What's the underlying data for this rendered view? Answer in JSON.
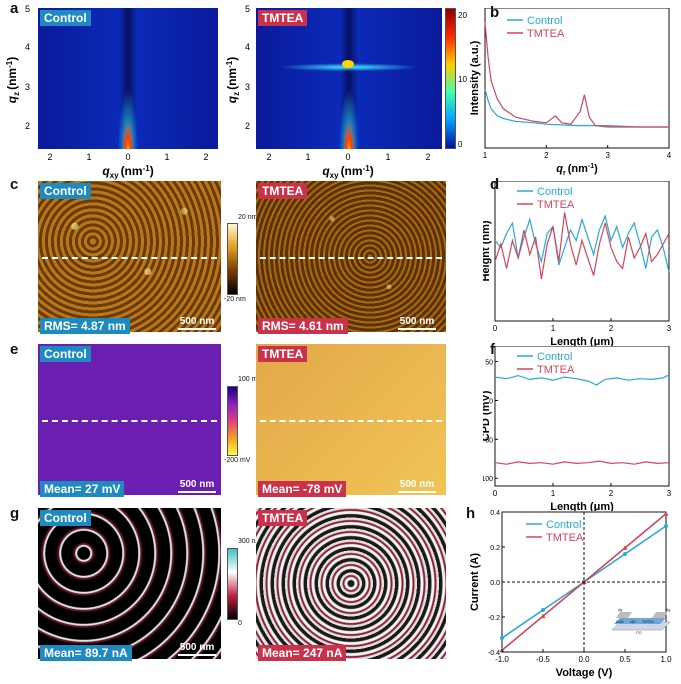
{
  "panels": {
    "a": {
      "letter": "a",
      "control_tag": "Control",
      "tmtea_tag": "TMTEA",
      "yaxis_label": "q",
      "yaxis_sub": "z",
      "yaxis_unit": "(nm",
      "xaxis_label": "q",
      "xaxis_sub": "xy",
      "xaxis_unit": "(nm",
      "yticks": [
        "5",
        "4",
        "3",
        "2"
      ],
      "xticks_left": [
        "2",
        "1",
        "0",
        "1",
        "2"
      ],
      "xticks_right": [
        "2",
        "1",
        "0",
        "1",
        "2"
      ],
      "colorbar_label": "Intensity (a.u.)",
      "colorbar_ticks": [
        "20",
        "10",
        "0"
      ]
    },
    "b": {
      "letter": "b",
      "legend": [
        "Control",
        "TMTEA"
      ],
      "ylabel": "Intensity (a.u.)",
      "xlabel": "q",
      "xlabel_sub": "r",
      "xlabel_unit": "(nm",
      "xticks": [
        "1",
        "2",
        "3",
        "4"
      ]
    },
    "c": {
      "letter": "c",
      "control_tag": "Control",
      "tmtea_tag": "TMTEA",
      "rms_control": "RMS= 4.87 nm",
      "rms_tmtea": "RMS= 4.61 nm",
      "scalebar": "500 nm",
      "cbar_top": "20 nm",
      "cbar_bottom": "-20 nm"
    },
    "d": {
      "letter": "d",
      "legend": [
        "Control",
        "TMTEA"
      ],
      "ylabel": "Height (nm)",
      "xlabel": "Length (μm)",
      "yticks": [
        "20",
        "10",
        "0",
        "-10",
        "-20"
      ],
      "xticks": [
        "0",
        "1",
        "2",
        "3"
      ]
    },
    "e": {
      "letter": "e",
      "control_tag": "Control",
      "tmtea_tag": "TMTEA",
      "mean_control": "Mean= 27 mV",
      "mean_tmtea": "Mean= -78 mV",
      "scalebar": "500 nm",
      "cbar_top": "100 mV",
      "cbar_bottom": "-200 mV"
    },
    "f": {
      "letter": "f",
      "legend": [
        "Control",
        "TMTEA"
      ],
      "ylabel": "CPD (mV)",
      "xlabel": "Length (μm)",
      "yticks": [
        "50",
        "0",
        "-50",
        "-100"
      ],
      "xticks": [
        "0",
        "1",
        "2",
        "3"
      ]
    },
    "g": {
      "letter": "g",
      "control_tag": "Control",
      "tmtea_tag": "TMTEA",
      "mean_control": "Mean= 89.7 nA",
      "mean_tmtea": "Mean= 247 nA",
      "scalebar": "500 nm",
      "cbar_top": "300 nA",
      "cbar_bottom": "0"
    },
    "h": {
      "letter": "h",
      "legend": [
        "Control",
        "TMTEA"
      ],
      "ylabel": "Current (A)",
      "xlabel": "Voltage (V)",
      "yticks": [
        "0.4",
        "0.2",
        "0.0",
        "-0.2",
        "-0.4"
      ],
      "xticks": [
        "-1.0",
        "-0.5",
        "0.0",
        "0.5",
        "1.0"
      ],
      "inset_labels": [
        "Ag",
        "SAM",
        "NiO",
        "TMTEA",
        "ITO",
        "Ag"
      ]
    }
  },
  "colors": {
    "control": "#2aa8d6",
    "tmtea": "#d3455d",
    "tag_control": "#1f8ac0",
    "tag_tmtea": "#c8334b",
    "kpfm_control": "#6a1fb0",
    "kpfm_tmtea": "#e9b84a"
  },
  "chart_data": [
    {
      "panel": "b",
      "type": "line",
      "xlabel": "q_r (nm^-1)",
      "ylabel": "Intensity (a.u.)",
      "xlim": [
        1,
        4
      ],
      "series": [
        {
          "name": "Control",
          "x": [
            1.0,
            1.05,
            1.1,
            1.2,
            1.3,
            1.5,
            1.8,
            2.0,
            2.5,
            3.0,
            3.5,
            4.0
          ],
          "y": [
            0.42,
            0.34,
            0.28,
            0.23,
            0.21,
            0.19,
            0.18,
            0.17,
            0.16,
            0.16,
            0.15,
            0.15
          ]
        },
        {
          "name": "TMTEA",
          "x": [
            1.0,
            1.05,
            1.1,
            1.2,
            1.3,
            1.5,
            1.8,
            2.0,
            2.15,
            2.25,
            2.4,
            2.55,
            2.62,
            2.7,
            2.8,
            3.0,
            3.5,
            4.0
          ],
          "y": [
            0.9,
            0.65,
            0.48,
            0.35,
            0.28,
            0.22,
            0.19,
            0.18,
            0.23,
            0.18,
            0.17,
            0.26,
            0.38,
            0.22,
            0.16,
            0.15,
            0.15,
            0.15
          ]
        }
      ]
    },
    {
      "panel": "d",
      "type": "line",
      "xlabel": "Length (μm)",
      "ylabel": "Height (nm)",
      "xlim": [
        0,
        3
      ],
      "ylim": [
        -20,
        20
      ],
      "series": [
        {
          "name": "Control",
          "x": [
            0.0,
            0.1,
            0.2,
            0.3,
            0.4,
            0.5,
            0.6,
            0.7,
            0.8,
            0.9,
            1.0,
            1.1,
            1.2,
            1.3,
            1.4,
            1.5,
            1.6,
            1.7,
            1.8,
            1.9,
            2.0,
            2.1,
            2.2,
            2.3,
            2.4,
            2.5,
            2.6,
            2.7,
            2.8,
            2.9,
            3.0
          ],
          "y": [
            3,
            1,
            5,
            8,
            -2,
            4,
            9,
            2,
            -3,
            5,
            7,
            -4,
            1,
            6,
            3,
            9,
            4,
            -1,
            6,
            10,
            3,
            7,
            1,
            5,
            8,
            2,
            -5,
            4,
            6,
            1,
            -6
          ]
        },
        {
          "name": "TMTEA",
          "x": [
            0.0,
            0.1,
            0.2,
            0.3,
            0.4,
            0.5,
            0.6,
            0.7,
            0.8,
            0.9,
            1.0,
            1.1,
            1.2,
            1.3,
            1.4,
            1.5,
            1.6,
            1.7,
            1.8,
            1.9,
            2.0,
            2.1,
            2.2,
            2.3,
            2.4,
            2.5,
            2.6,
            2.7,
            2.8,
            2.9,
            3.0
          ],
          "y": [
            -3,
            2,
            -5,
            3,
            -2,
            6,
            -1,
            4,
            -8,
            2,
            7,
            -3,
            11,
            2,
            -4,
            3,
            -2,
            -7,
            2,
            8,
            1,
            -3,
            -5,
            4,
            -2,
            1,
            5,
            -3,
            -1,
            2,
            5
          ]
        }
      ]
    },
    {
      "panel": "f",
      "type": "line",
      "xlabel": "Length (μm)",
      "ylabel": "CPD (mV)",
      "xlim": [
        0,
        3
      ],
      "ylim": [
        -110,
        70
      ],
      "series": [
        {
          "name": "Control",
          "x": [
            0.0,
            0.2,
            0.4,
            0.6,
            0.8,
            1.0,
            1.2,
            1.4,
            1.6,
            1.75,
            1.9,
            2.1,
            2.3,
            2.5,
            2.7,
            2.9,
            3.0
          ],
          "y": [
            30,
            28,
            32,
            27,
            29,
            26,
            30,
            28,
            25,
            20,
            27,
            29,
            26,
            28,
            27,
            29,
            33
          ]
        },
        {
          "name": "TMTEA",
          "x": [
            0.0,
            0.2,
            0.4,
            0.6,
            0.8,
            1.0,
            1.2,
            1.4,
            1.6,
            1.8,
            2.0,
            2.2,
            2.4,
            2.6,
            2.8,
            3.0
          ],
          "y": [
            -80,
            -82,
            -79,
            -81,
            -80,
            -82,
            -79,
            -81,
            -80,
            -78,
            -81,
            -80,
            -82,
            -79,
            -81,
            -80
          ]
        }
      ]
    },
    {
      "panel": "h",
      "type": "line",
      "xlabel": "Voltage (V)",
      "ylabel": "Current (A)",
      "xlim": [
        -1,
        1
      ],
      "ylim": [
        -0.4,
        0.4
      ],
      "series": [
        {
          "name": "Control",
          "x": [
            -1.0,
            -0.5,
            0.0,
            0.5,
            1.0
          ],
          "y": [
            -0.32,
            -0.16,
            0.0,
            0.16,
            0.32
          ]
        },
        {
          "name": "TMTEA",
          "x": [
            -1.0,
            -0.5,
            0.0,
            0.5,
            1.0
          ],
          "y": [
            -0.39,
            -0.195,
            0.0,
            0.195,
            0.39
          ]
        }
      ]
    }
  ]
}
